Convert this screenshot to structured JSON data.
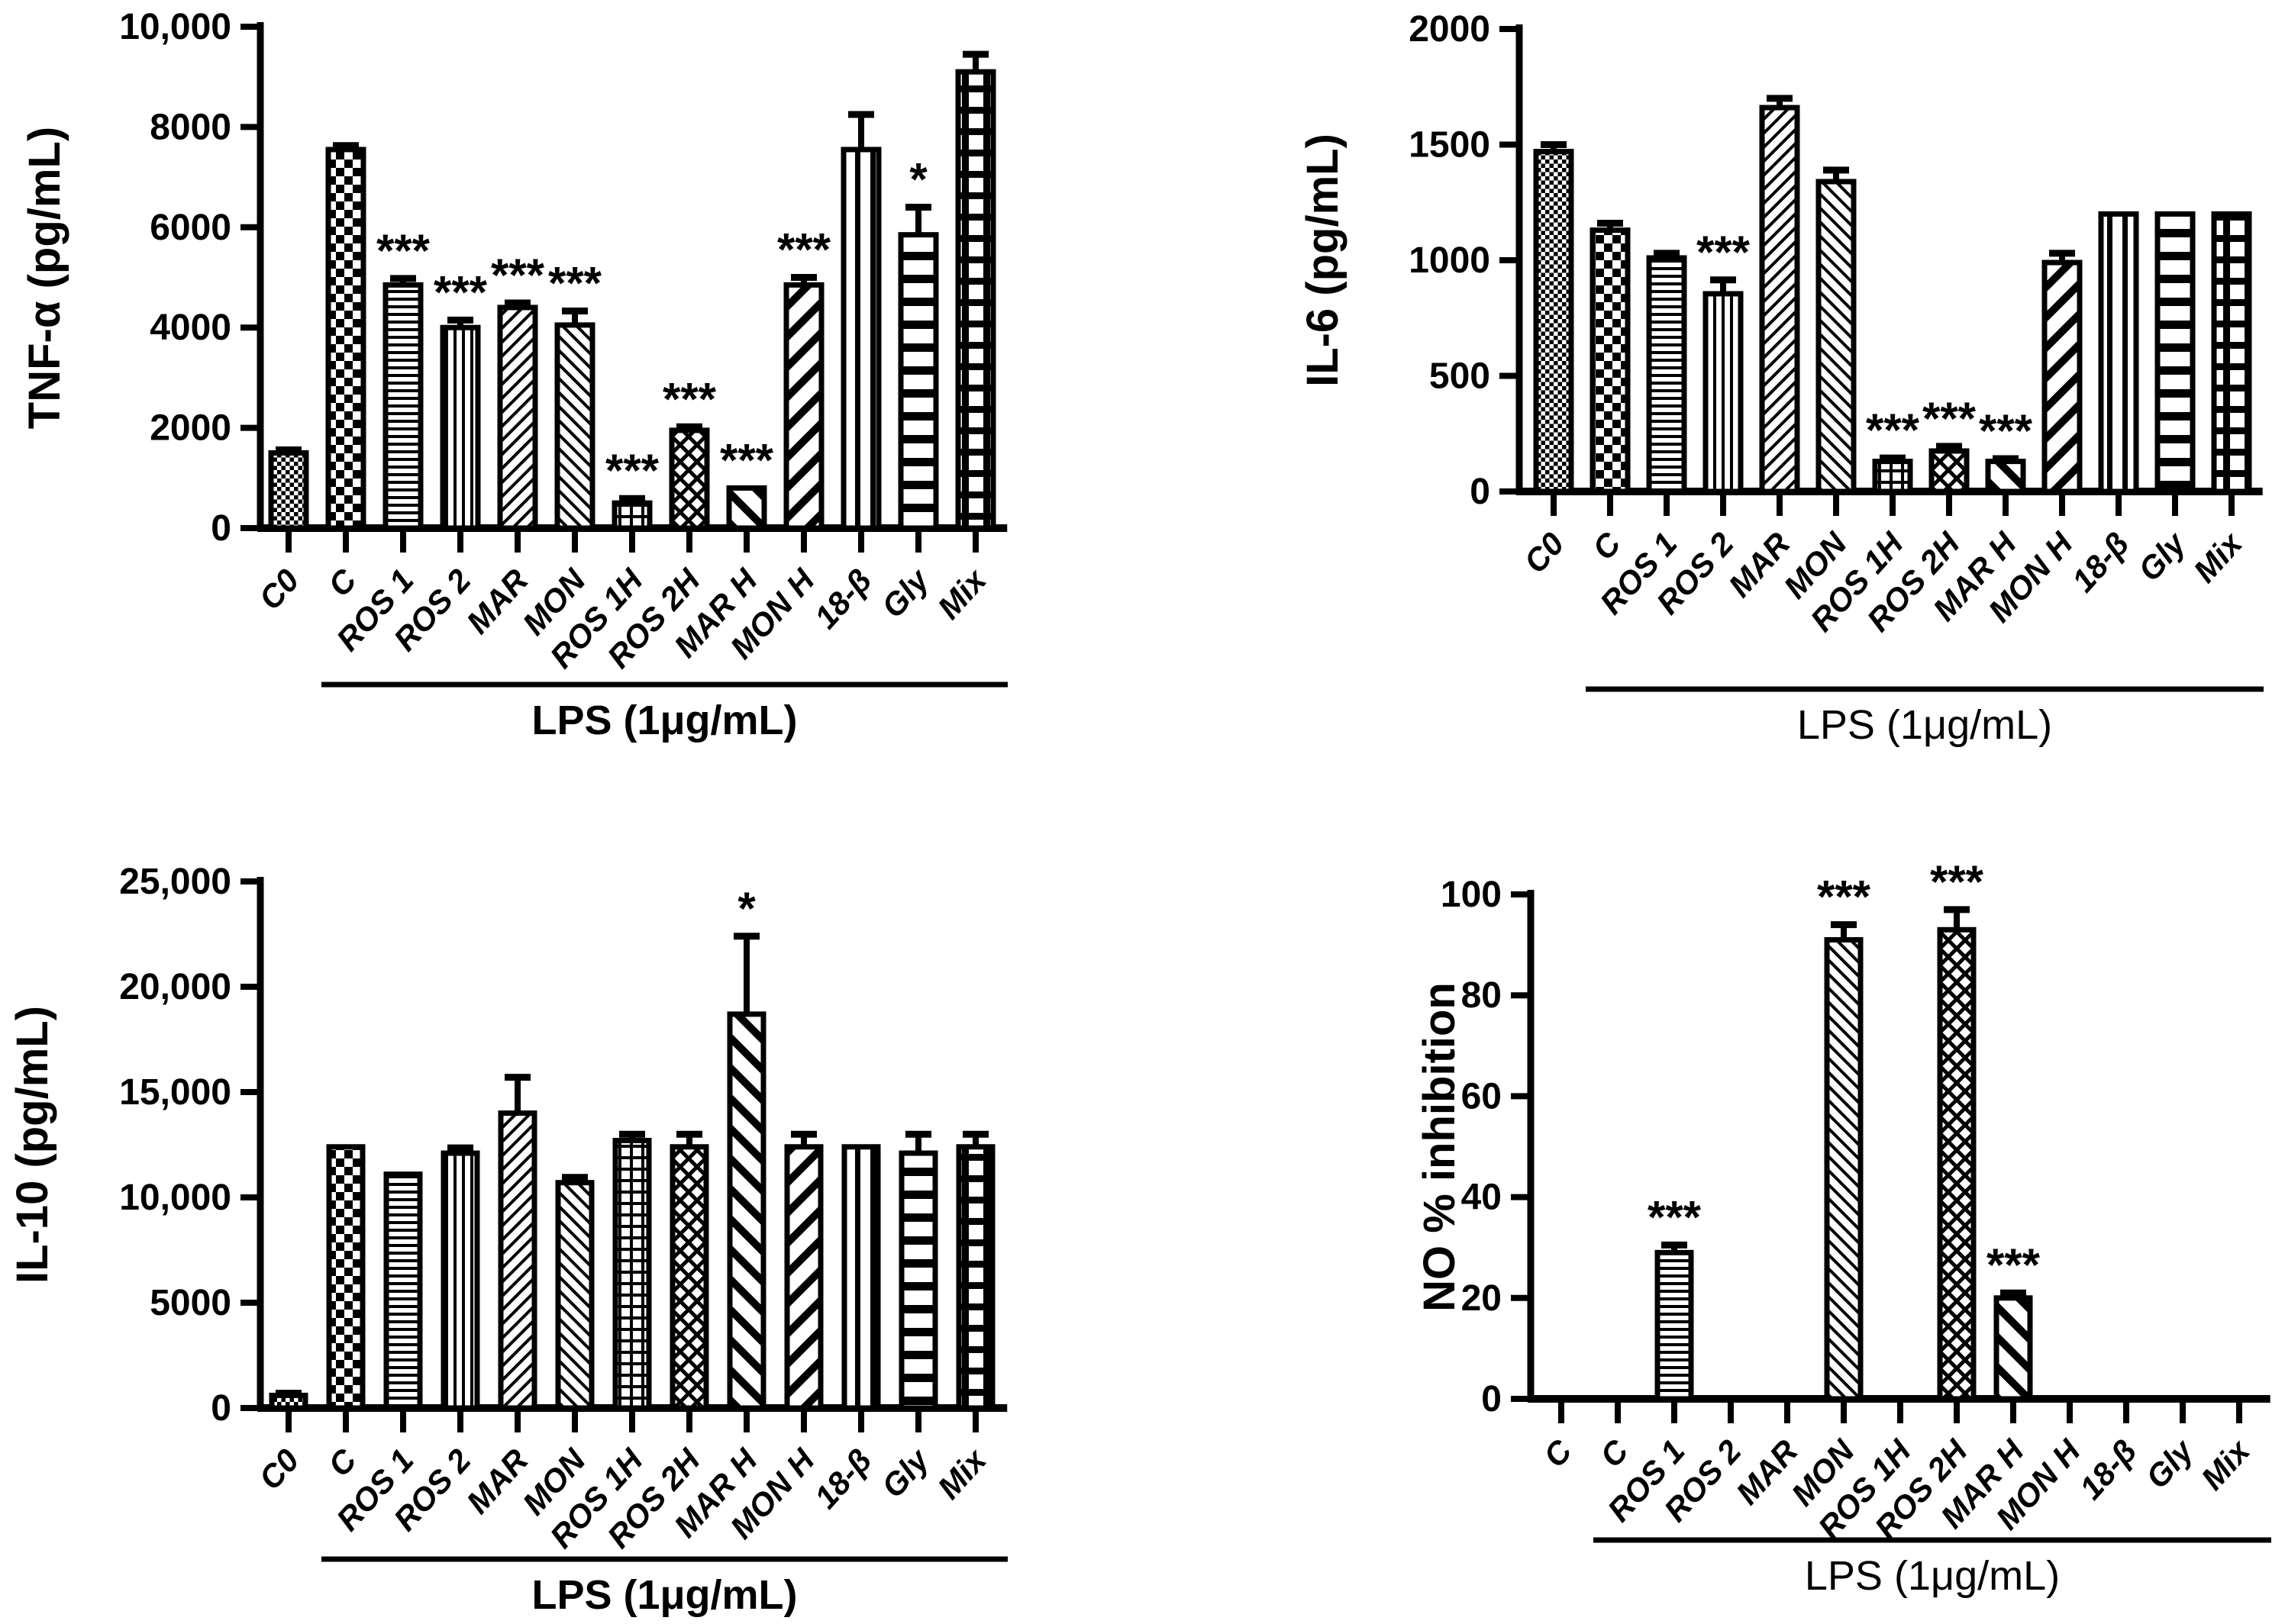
{
  "figure": {
    "background": "#ffffff",
    "bar_fill": "#ffffff",
    "bar_stroke": "#000000",
    "significance_symbols": {
      "strong": "***",
      "weak": "*"
    }
  },
  "chart_data": [
    {
      "id": "tnf-alpha",
      "type": "bar",
      "title": "",
      "ylabel": "TNF-α (pg/mL)",
      "xlabel": "LPS (1μg/mL)",
      "ylim": [
        0,
        10000
      ],
      "yticks": [
        0,
        2000,
        4000,
        6000,
        8000,
        10000
      ],
      "ytick_labels": [
        "0",
        "2000",
        "4000",
        "6000",
        "8000",
        "10,000"
      ],
      "categories": [
        "C0",
        "C",
        "ROS 1",
        "ROS 2",
        "MAR",
        "MON",
        "ROS 1H",
        "ROS 2H",
        "MAR H",
        "MON H",
        "18-β",
        "Gly",
        "Mix"
      ],
      "values": [
        1500,
        7550,
        4850,
        4000,
        4400,
        4050,
        500,
        1950,
        800,
        4850,
        7550,
        5850,
        9100
      ],
      "errors": [
        60,
        80,
        130,
        150,
        90,
        280,
        90,
        70,
        0,
        150,
        700,
        550,
        350
      ],
      "sig": [
        "",
        "",
        "***",
        "***",
        "***",
        "***",
        "***",
        "***",
        "***",
        "***",
        "",
        "*",
        ""
      ],
      "patterns": [
        "checker-fine",
        "checker-coarse",
        "hlines-fine",
        "vlines-fine",
        "diag-up-fine",
        "diag-down-fine",
        "grid-fine",
        "crosshatch-diamond",
        "diag-down-wide",
        "diag-up-wide",
        "vlines-wide",
        "hlines-wide",
        "grid-wide"
      ],
      "lps_span": [
        1,
        12
      ],
      "grid": false,
      "legend": null
    },
    {
      "id": "il-6",
      "type": "bar",
      "title": "",
      "ylabel": "IL-6 (pg/mL)",
      "xlabel": "LPS (1μg/mL)",
      "ylim": [
        0,
        2000
      ],
      "yticks": [
        0,
        500,
        1000,
        1500,
        2000
      ],
      "ytick_labels": [
        "0",
        "500",
        "1000",
        "1500",
        "2000"
      ],
      "categories": [
        "C0",
        "C",
        "ROS 1",
        "ROS 2",
        "MAR",
        "MON",
        "ROS 1H",
        "ROS 2H",
        "MAR H",
        "MON H",
        "18-β",
        "Gly",
        "Mix"
      ],
      "values": [
        1470,
        1130,
        1010,
        855,
        1660,
        1340,
        130,
        175,
        130,
        990,
        1200,
        1200,
        1200
      ],
      "errors": [
        30,
        30,
        20,
        60,
        40,
        50,
        15,
        20,
        12,
        40,
        0,
        0,
        0
      ],
      "sig": [
        "",
        "",
        "",
        "***",
        "",
        "",
        "***",
        "***",
        "***",
        "",
        "",
        "",
        ""
      ],
      "patterns": [
        "checker-fine",
        "checker-coarse",
        "hlines-fine",
        "vlines-fine",
        "diag-up-fine",
        "diag-down-fine",
        "grid-fine",
        "crosshatch-diamond",
        "diag-down-wide",
        "diag-up-wide",
        "vlines-wide",
        "hlines-wide",
        "grid-wide"
      ],
      "lps_span": [
        1,
        12
      ],
      "grid": false,
      "legend": null
    },
    {
      "id": "il-10",
      "type": "bar",
      "title": "",
      "ylabel": "IL-10 (pg/mL)",
      "xlabel": "LPS (1μg/mL)",
      "ylim": [
        0,
        25000
      ],
      "yticks": [
        0,
        5000,
        10000,
        15000,
        20000,
        25000
      ],
      "ytick_labels": [
        "0",
        "5000",
        "10,000",
        "15,000",
        "20,000",
        "25,000"
      ],
      "categories": [
        "C0",
        "C",
        "ROS 1",
        "ROS 2",
        "MAR",
        "MON",
        "ROS 1H",
        "ROS 2H",
        "MAR H",
        "MON H",
        "18-β",
        "Gly",
        "Mix"
      ],
      "values": [
        600,
        12400,
        11100,
        12100,
        14000,
        10700,
        12700,
        12400,
        18700,
        12400,
        12400,
        12100,
        12400
      ],
      "errors": [
        100,
        0,
        0,
        250,
        1700,
        250,
        300,
        600,
        3700,
        600,
        0,
        900,
        600
      ],
      "sig": [
        "",
        "",
        "",
        "",
        "",
        "",
        "",
        "",
        "*",
        "",
        "",
        "",
        ""
      ],
      "patterns": [
        "checker-fine",
        "checker-coarse",
        "hlines-fine",
        "vlines-fine",
        "diag-up-fine",
        "diag-down-fine",
        "grid-fine",
        "crosshatch-diamond",
        "diag-down-wide",
        "diag-up-wide",
        "vlines-wide",
        "hlines-wide",
        "grid-wide"
      ],
      "lps_span": [
        1,
        12
      ],
      "grid": false,
      "legend": null
    },
    {
      "id": "no-inhibition",
      "type": "bar",
      "title": "",
      "ylabel": "NO % inhibition",
      "xlabel": "LPS (1μg/mL)",
      "ylim": [
        0,
        100
      ],
      "yticks": [
        0,
        20,
        40,
        60,
        80,
        100
      ],
      "ytick_labels": [
        "0",
        "20",
        "40",
        "60",
        "80",
        "100"
      ],
      "categories": [
        "C",
        "C",
        "ROS 1",
        "ROS 2",
        "MAR",
        "MON",
        "ROS 1H",
        "ROS 2H",
        "MAR H",
        "MON H",
        "18-β",
        "Gly",
        "Mix"
      ],
      "values": [
        0,
        0,
        29,
        0,
        0,
        91,
        0,
        93,
        20,
        0,
        0,
        0,
        0
      ],
      "errors": [
        0,
        0,
        1.5,
        0,
        0,
        3,
        0,
        4,
        1,
        0,
        0,
        0,
        0
      ],
      "sig": [
        "",
        "",
        "***",
        "",
        "",
        "***",
        "",
        "***",
        "***",
        "",
        "",
        "",
        ""
      ],
      "patterns": [
        "plain",
        "plain",
        "hlines-fine",
        "vlines-fine",
        "diag-up-fine",
        "diag-down-fine",
        "grid-fine",
        "crosshatch-diamond",
        "diag-down-wide",
        "diag-up-wide",
        "vlines-wide",
        "hlines-wide",
        "grid-wide"
      ],
      "lps_span": [
        1,
        12
      ],
      "grid": false,
      "legend": null
    }
  ]
}
